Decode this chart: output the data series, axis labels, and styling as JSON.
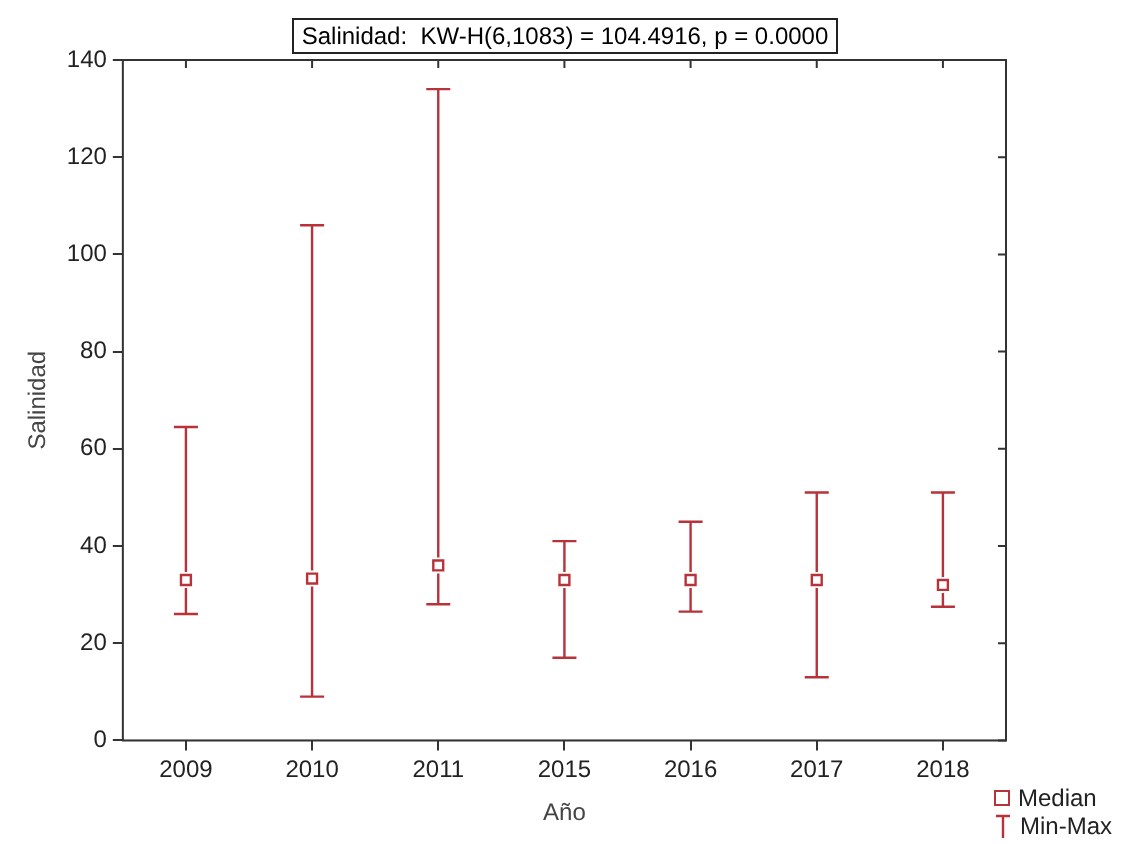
{
  "chart_data": {
    "type": "scatter",
    "title": "Salinidad:  KW-H(6,1083) = 104.4916, p = 0.0000",
    "xlabel": "Año",
    "ylabel": "Salinidad",
    "categories": [
      "2009",
      "2010",
      "2011",
      "2015",
      "2016",
      "2017",
      "2018"
    ],
    "series": [
      {
        "name": "Median",
        "color": "#b8323a",
        "values": [
          33,
          33.3,
          36,
          33,
          33,
          33,
          32
        ],
        "errors": [
          [
            26,
            64.5
          ],
          [
            9,
            106
          ],
          [
            28,
            134
          ],
          [
            17,
            41
          ],
          [
            26.5,
            45
          ],
          [
            13,
            51
          ],
          [
            27.5,
            51
          ]
        ]
      }
    ],
    "annotations": [
      "Min-Max"
    ],
    "ylim": [
      0,
      140
    ],
    "yticks": [
      0,
      20,
      40,
      60,
      80,
      100,
      120,
      140
    ],
    "grid": false,
    "legend": "bottom right",
    "marker": "square"
  }
}
